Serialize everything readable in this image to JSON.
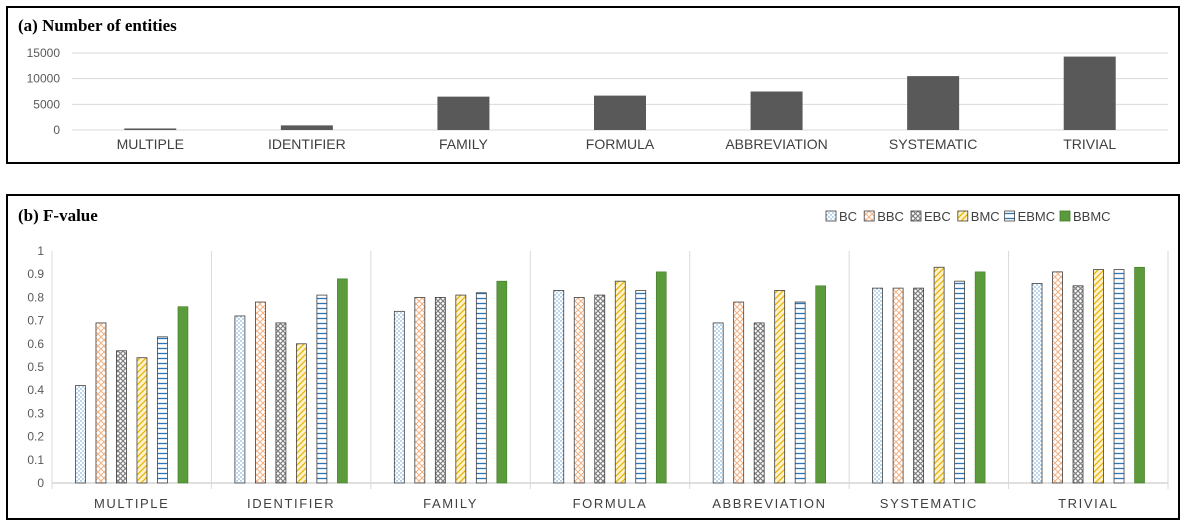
{
  "chart_data": [
    {
      "type": "bar",
      "title": "(a) Number of entities",
      "categories": [
        "MULTIPLE",
        "IDENTIFIER",
        "FAMILY",
        "FORMULA",
        "ABBREVIATION",
        "SYSTEMATIC",
        "TRIVIAL"
      ],
      "values": [
        300,
        900,
        6500,
        6700,
        7500,
        10500,
        14300
      ],
      "ylim": [
        0,
        15000
      ],
      "yticks": [
        "0",
        "5000",
        "10000",
        "15000"
      ],
      "grid": true,
      "colors": {
        "bar": "#595959"
      }
    },
    {
      "type": "bar",
      "title": "(b) F-value",
      "categories": [
        "MULTIPLE",
        "IDENTIFIER",
        "FAMILY",
        "FORMULA",
        "ABBREVIATION",
        "SYSTEMATIC",
        "TRIVIAL"
      ],
      "ylim": [
        0,
        1
      ],
      "yticks": [
        "0",
        "0.1",
        "0.2",
        "0.3",
        "0.4",
        "0.5",
        "0.6",
        "0.7",
        "0.8",
        "0.9",
        "1"
      ],
      "legend_position": "top-right",
      "grid": false,
      "series": [
        {
          "name": "BC",
          "values": [
            0.42,
            0.72,
            0.74,
            0.83,
            0.69,
            0.84,
            0.86
          ]
        },
        {
          "name": "BBC",
          "values": [
            0.69,
            0.78,
            0.8,
            0.8,
            0.78,
            0.84,
            0.91
          ]
        },
        {
          "name": "EBC",
          "values": [
            0.57,
            0.69,
            0.8,
            0.81,
            0.69,
            0.84,
            0.85
          ]
        },
        {
          "name": "BMC",
          "values": [
            0.54,
            0.6,
            0.81,
            0.87,
            0.83,
            0.93,
            0.92
          ]
        },
        {
          "name": "EBMC",
          "values": [
            0.63,
            0.81,
            0.82,
            0.83,
            0.78,
            0.87,
            0.92
          ]
        },
        {
          "name": "BBMC",
          "values": [
            0.76,
            0.88,
            0.87,
            0.91,
            0.85,
            0.91,
            0.93
          ]
        }
      ],
      "colors": {
        "BC": "#9dc3e6",
        "BBC": "#f4b183",
        "EBC": "#7f7f7f",
        "BMC": "#ffd966",
        "EBMC": "#2e75b6",
        "BBMC": "#5b9b3c"
      }
    }
  ]
}
